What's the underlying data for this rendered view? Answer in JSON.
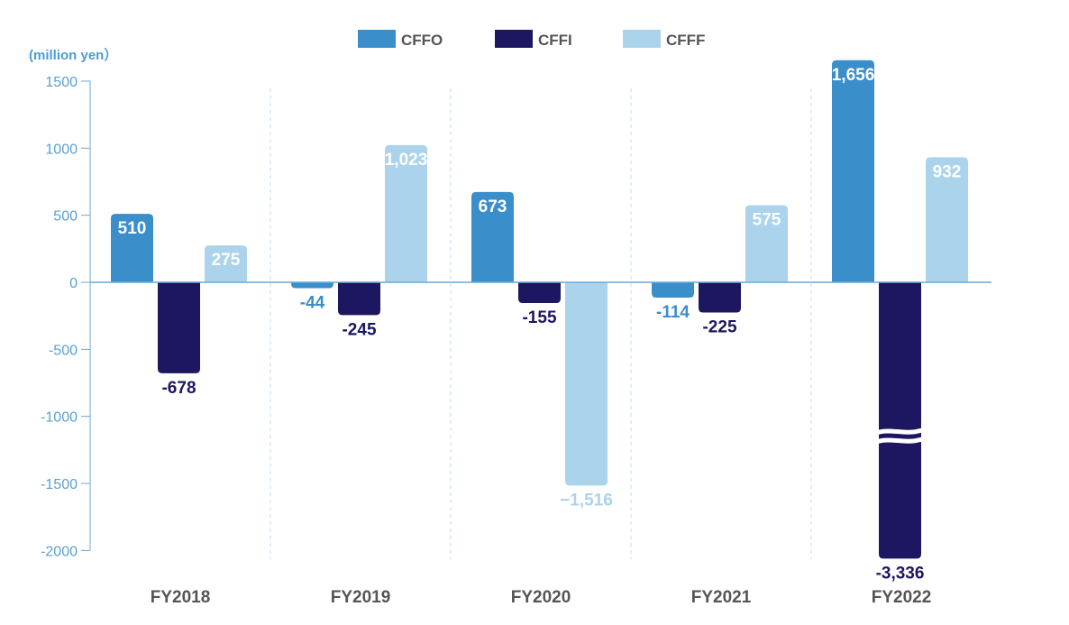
{
  "chart_data": {
    "type": "bar",
    "unit_label": "(million yen）",
    "categories": [
      "FY2018",
      "FY2019",
      "FY2020",
      "FY2021",
      "FY2022"
    ],
    "ylim": [
      -2000,
      1500
    ],
    "y_ticks": [
      1500,
      1000,
      500,
      0,
      -500,
      -1000,
      -1500,
      -2000
    ],
    "y_tick_labels": [
      "1500",
      "1000",
      "500",
      "0",
      "-500",
      "-1000",
      "-1500",
      "-2000"
    ],
    "axis_break": {
      "series": "CFFI",
      "category": "FY2022"
    },
    "legend_position": "top-center",
    "grid": false,
    "series": [
      {
        "name": "CFFO",
        "color": "#3a8fcb",
        "values": [
          510,
          -44,
          673,
          -114,
          1656
        ],
        "labels": [
          "510",
          "-44",
          "673",
          "-114",
          "1,656"
        ]
      },
      {
        "name": "CFFI",
        "color": "#1c1760",
        "values": [
          -678,
          -245,
          -155,
          -225,
          -3336
        ],
        "labels": [
          "-678",
          "-245",
          "-155",
          "-225",
          "-3,336"
        ]
      },
      {
        "name": "CFFF",
        "color": "#acd3ec",
        "values": [
          275,
          1023,
          -1516,
          575,
          932
        ],
        "labels": [
          "275",
          "1,023",
          "−1,516",
          "575",
          "932"
        ]
      }
    ]
  }
}
